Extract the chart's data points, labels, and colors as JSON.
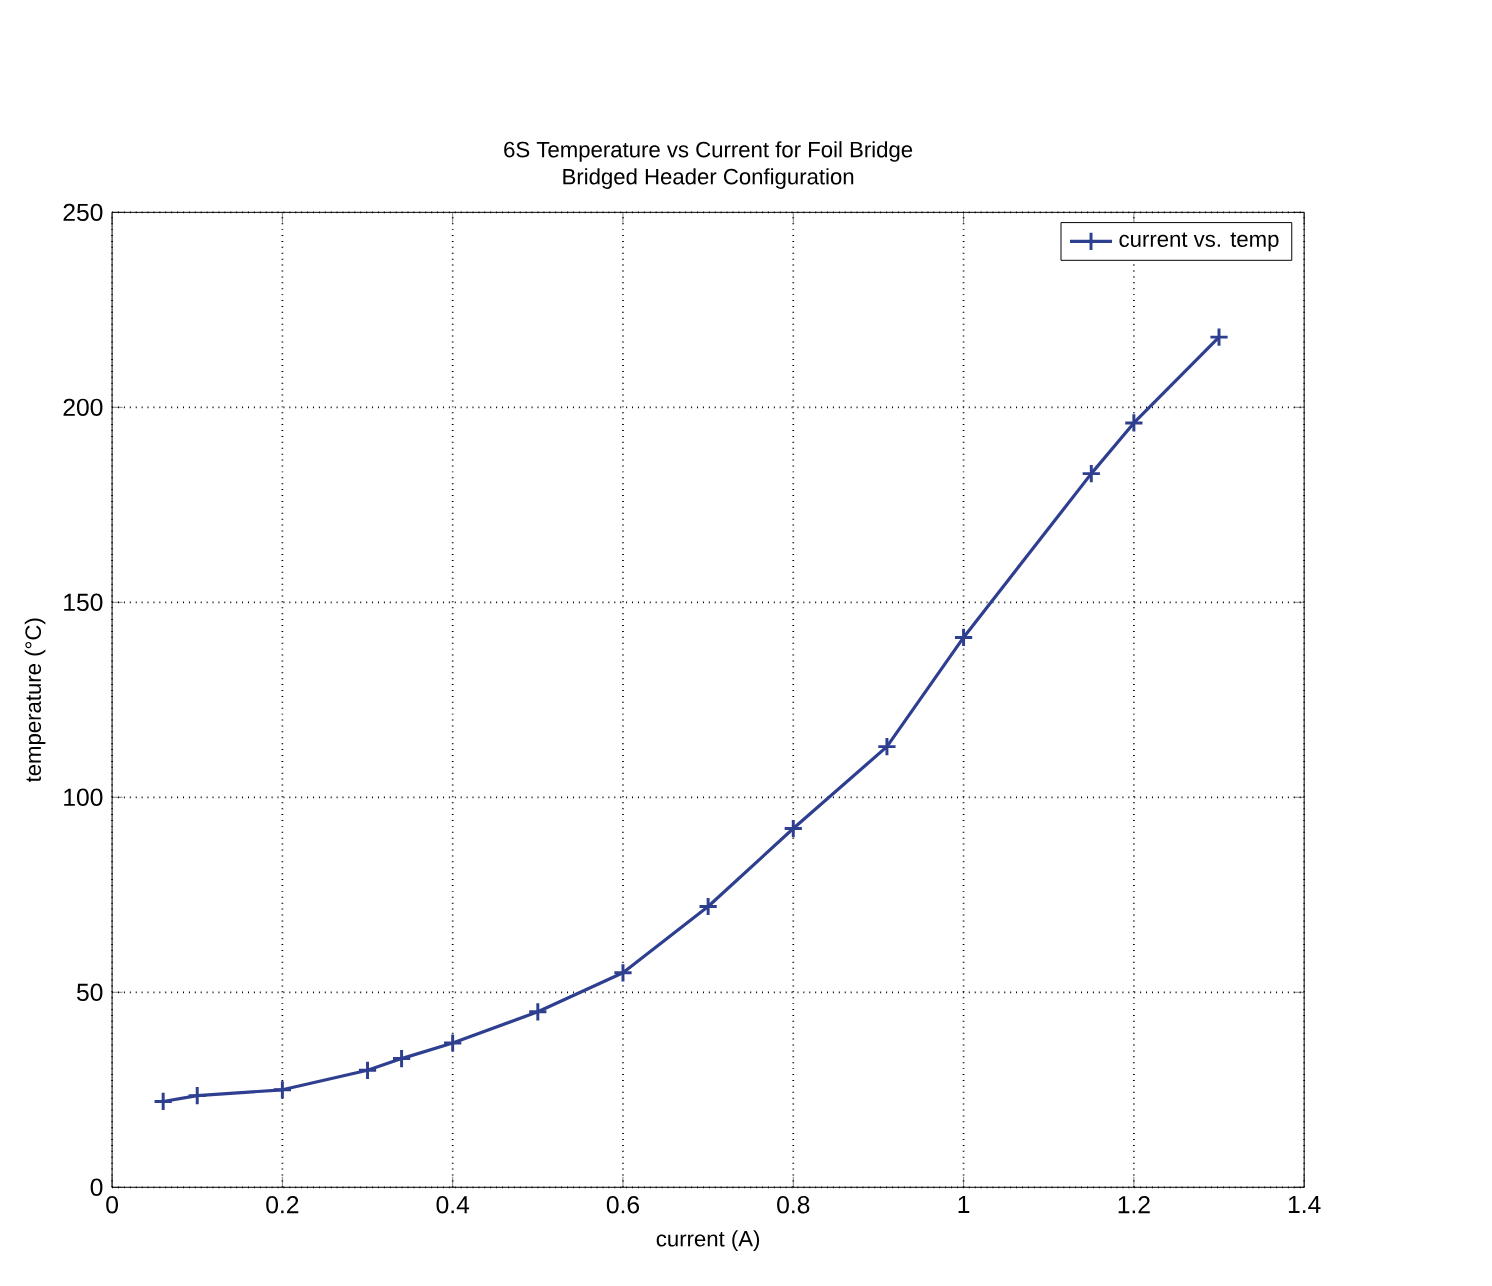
{
  "chart_data": {
    "type": "line",
    "title": "6S Temperature vs Current for Foil Bridge",
    "subtitle": "Bridged Header Configuration",
    "xlabel": "current (A)",
    "ylabel": "temperature (°C)",
    "x": [
      0.06,
      0.1,
      0.2,
      0.3,
      0.34,
      0.4,
      0.5,
      0.6,
      0.7,
      0.8,
      0.91,
      1.0,
      1.15,
      1.2,
      1.3
    ],
    "series": [
      {
        "name": "current vs. temp",
        "color": "#2e3f8f",
        "values": [
          22,
          23.5,
          25,
          30,
          33,
          37,
          45,
          55,
          72,
          92,
          113,
          141,
          183,
          196,
          218
        ]
      }
    ],
    "xlim": [
      0,
      1.4
    ],
    "ylim": [
      0,
      250
    ],
    "xticks": [
      0,
      0.2,
      0.4,
      0.6,
      0.8,
      1,
      1.2,
      1.4
    ],
    "yticks": [
      0,
      50,
      100,
      150,
      200,
      250
    ],
    "grid": true,
    "legend": "top right",
    "marker": "cross",
    "line_style": "solid"
  }
}
